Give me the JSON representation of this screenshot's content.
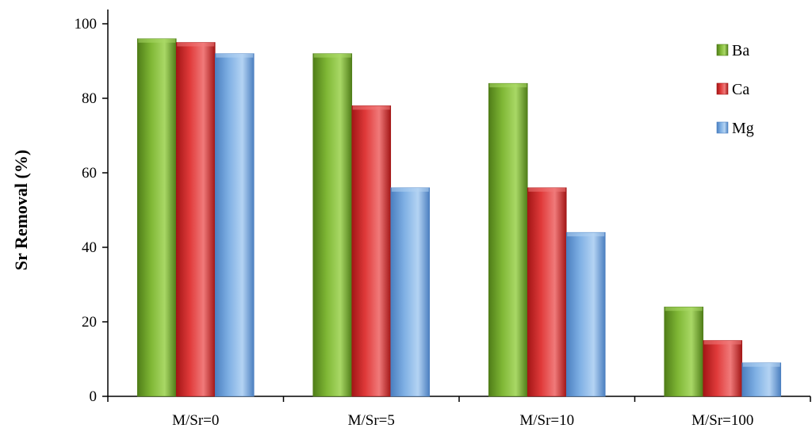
{
  "chart_data": {
    "type": "bar",
    "title": "",
    "xlabel": "",
    "ylabel": "Sr Removal (%)",
    "ylim": [
      0,
      100
    ],
    "yticks": [
      0,
      20,
      40,
      60,
      80,
      100
    ],
    "categories": [
      "M/Sr=0",
      "M/Sr=5",
      "M/Sr=10",
      "M/Sr=100"
    ],
    "series": [
      {
        "name": "Ba",
        "values": [
          96,
          92,
          84,
          24
        ],
        "color": "#7fb735",
        "color_dark": "#4f7d18",
        "color_light": "#a9d866"
      },
      {
        "name": "Ca",
        "values": [
          95,
          78,
          56,
          15
        ],
        "color": "#e03a3a",
        "color_dark": "#a31616",
        "color_light": "#f07a7a"
      },
      {
        "name": "Mg",
        "values": [
          92,
          56,
          44,
          9
        ],
        "color": "#7fb0e4",
        "color_dark": "#4b7fc0",
        "color_light": "#b4d3f3"
      }
    ],
    "grid": false,
    "legend_position": "top-right"
  }
}
